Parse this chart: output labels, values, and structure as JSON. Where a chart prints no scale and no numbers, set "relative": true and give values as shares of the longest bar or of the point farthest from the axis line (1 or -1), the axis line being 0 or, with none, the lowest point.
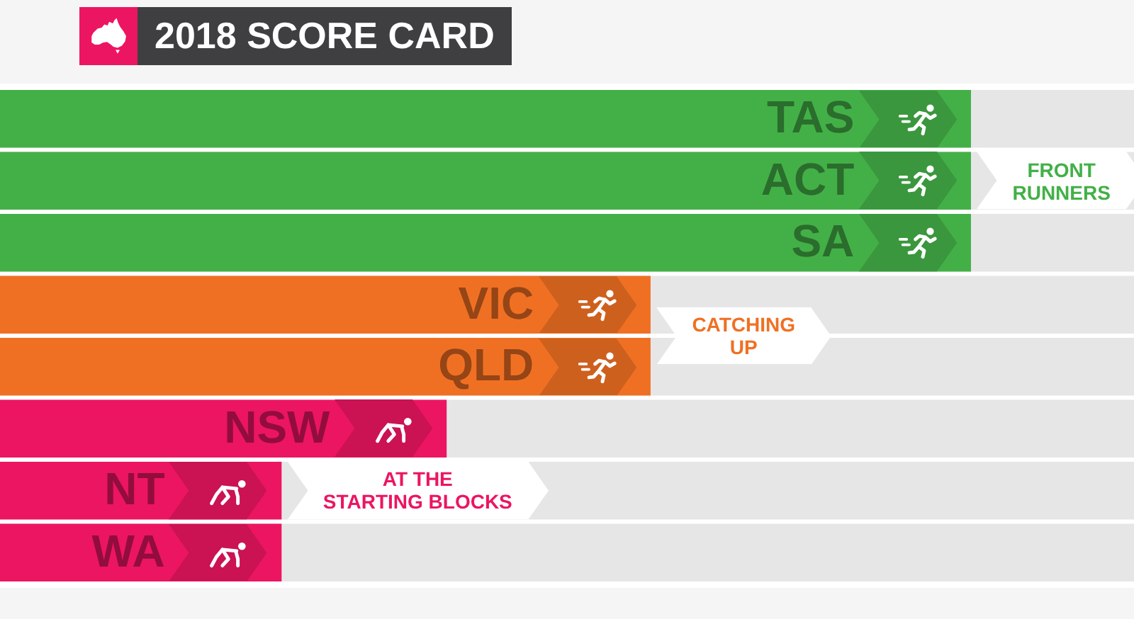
{
  "chart_data": {
    "type": "bar",
    "orientation": "horizontal",
    "relative": true,
    "title": "2018 SCORE CARD",
    "categories": [
      "TAS",
      "ACT",
      "SA",
      "VIC",
      "QLD",
      "NSW",
      "NT",
      "WA"
    ],
    "series": [
      {
        "name": "FRONT RUNNERS",
        "color": "#43b047",
        "values": [
          1,
          1,
          1,
          null,
          null,
          null,
          null,
          null
        ]
      },
      {
        "name": "CATCHING UP",
        "color": "#f07023",
        "values": [
          null,
          null,
          null,
          0.67,
          0.67,
          null,
          null,
          null
        ]
      },
      {
        "name": "AT THE STARTING BLOCKS",
        "color": "#ec1561",
        "values": [
          null,
          null,
          null,
          null,
          null,
          0.46,
          0.29,
          0.29
        ]
      }
    ]
  }
}
